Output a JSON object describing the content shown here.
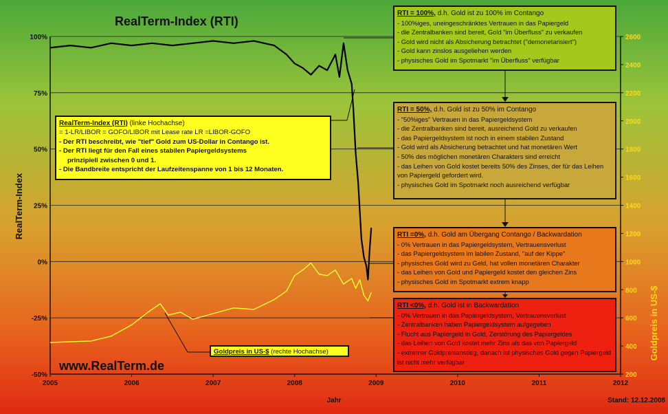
{
  "chart_data": {
    "type": "line",
    "title": "RealTerm-Index (RTI)",
    "xlabel": "Jahr",
    "ylabel": "RealTerm-Index",
    "y2label": "Goldpreis in US-$",
    "x_ticks": [
      "2005",
      "2006",
      "2007",
      "2008",
      "2009",
      "2010",
      "2011",
      "2012"
    ],
    "y_ticks": [
      "100%",
      "75%",
      "50%",
      "25%",
      "0%",
      "-25%",
      "-50%"
    ],
    "y2_ticks": [
      "2600",
      "2400",
      "2200",
      "2000",
      "1800",
      "1600",
      "1400",
      "1200",
      "1000",
      "800",
      "600",
      "400",
      "200"
    ],
    "xlim": [
      2005,
      2012
    ],
    "ylim": [
      -50,
      100
    ],
    "y2lim": [
      200,
      2600
    ],
    "series": [
      {
        "axis": "left",
        "color": "#000000",
        "x": [
          2005.0,
          2005.25,
          2005.5,
          2005.75,
          2006.0,
          2006.25,
          2006.5,
          2006.75,
          2007.0,
          2007.25,
          2007.5,
          2007.75,
          2007.9,
          2008.0,
          2008.1,
          2008.2,
          2008.3,
          2008.4,
          2008.5,
          2008.55,
          2008.6,
          2008.65,
          2008.7,
          2008.72,
          2008.75,
          2008.78,
          2008.8,
          2008.82,
          2008.85,
          2008.88,
          2008.9,
          2008.92,
          2008.94
        ],
        "y": [
          95,
          96,
          95,
          97,
          96,
          97,
          96,
          97,
          98,
          97,
          98,
          96,
          92,
          88,
          86,
          83,
          87,
          85,
          92,
          82,
          97,
          85,
          79,
          68,
          48,
          35,
          22,
          10,
          2,
          -2,
          -8,
          5,
          15
        ]
      },
      {
        "name": "Goldpreis in US-$",
        "axis": "right",
        "color": "#ffff33",
        "x": [
          2005.0,
          2005.25,
          2005.5,
          2005.75,
          2006.0,
          2006.2,
          2006.35,
          2006.45,
          2006.6,
          2006.75,
          2007.0,
          2007.25,
          2007.5,
          2007.75,
          2007.9,
          2008.0,
          2008.1,
          2008.2,
          2008.3,
          2008.4,
          2008.5,
          2008.6,
          2008.7,
          2008.75,
          2008.8,
          2008.85,
          2008.9,
          2008.94
        ],
        "y": [
          425,
          430,
          435,
          470,
          550,
          640,
          700,
          620,
          640,
          590,
          630,
          670,
          660,
          730,
          790,
          900,
          940,
          990,
          910,
          900,
          940,
          840,
          880,
          810,
          870,
          760,
          720,
          780
        ]
      }
    ]
  },
  "site": "www.RealTerm.de",
  "stand": "Stand: 12.12.2008",
  "rti_box": {
    "head_key": "RealTerm-Index (RTI)",
    "head_rest": " (linke Hochachse)",
    "formula": "= 1-LR/LIBOR = GOFO/LIBOR  mit Lease rate LR =LIBOR-GOFO",
    "lines": [
      "Der RTI beschreibt, wie \"tief\" Gold zum US-Dollar in Contango ist.",
      "Der RTI liegt für den Fall eines stabilen Papiergeldsystems",
      "Die Bandbreite entspricht der Laufzeitenspanne von 1 bis 12 Monaten."
    ],
    "line2_cont": "prinzipiell zwischen 0 und 1."
  },
  "gold_box": {
    "key": "Goldpreis in US-$",
    "rest": " (rechte Hochachse)"
  },
  "box_100": {
    "key": "RTI = 100%,",
    "rest": " d.h. Gold ist zu 100% im Contango",
    "items": [
      "100%iges, uneingeschränktes Vertrauen in das Papiergeld",
      "die Zentralbanken sind bereit, Gold \"im Überfluss\" zu verkaufen",
      "Gold wird nicht als Absicherung betrachtet (\"demonetarisiert\")",
      "Gold kann zinslos ausgeliehen werden",
      "physisches Gold im Spotmarkt \"im Überfluss\" verfügbar"
    ]
  },
  "box_50": {
    "key": "RTI = 50%,",
    "rest": " d.h. Gold ist zu 50% im Contango",
    "items": [
      "\"50%iges\" Vertrauen in das Papiergeldsystem",
      "die Zentralbanken sind bereit, ausreichend Gold zu verkaufen",
      "das Papiergeldsystem ist noch in einem stabilen Zustand",
      "Gold wird als Absicherung betrachtet und hat monetären Wert",
      "50% des möglichen monetären Charakters sind erreicht",
      "das Leihen von Gold kostet bereits 50% des Zinses, der für das Leihen von Papiergeld gefordert wird.",
      "physisches Gold im Spotmarkt noch ausreichend verfügbar"
    ]
  },
  "box_0": {
    "key": "RTI =0%,",
    "rest": " d.h. Gold am Übergang Contango / Backwardation",
    "items": [
      "0% Vertrauen in das Papiergeldsystem, Vertrauensverlust",
      "das Papiergeldsystem im labilen Zustand, \"auf der Kippe\"",
      "physisches Gold wird zu Geld, hat vollen monetären Charakter",
      "das Leihen von Gold und Papiergeld kostet den gleichen Zins",
      "physisches Gold im Spotmarkt extrem knapp"
    ]
  },
  "box_neg": {
    "key": "RTI <0%,",
    "rest": " d.h. Gold ist in Backwardation",
    "items": [
      "0% Vertrauen in das Papiergeldsystem, Vertrauensverlust",
      "Zentralbanken haben Papiergeldsystem aufgegeben",
      "Flucht aus Papiergeld in Gold, Zerstörung des Papiergeldes",
      "das Leihen von Gold kostet mehr Zins als das von Papiergeld",
      "extremer Goldpreisanstieg, danach ist physisches Gold gegen Papiergeld ist nicht mehr verfügbar"
    ]
  }
}
